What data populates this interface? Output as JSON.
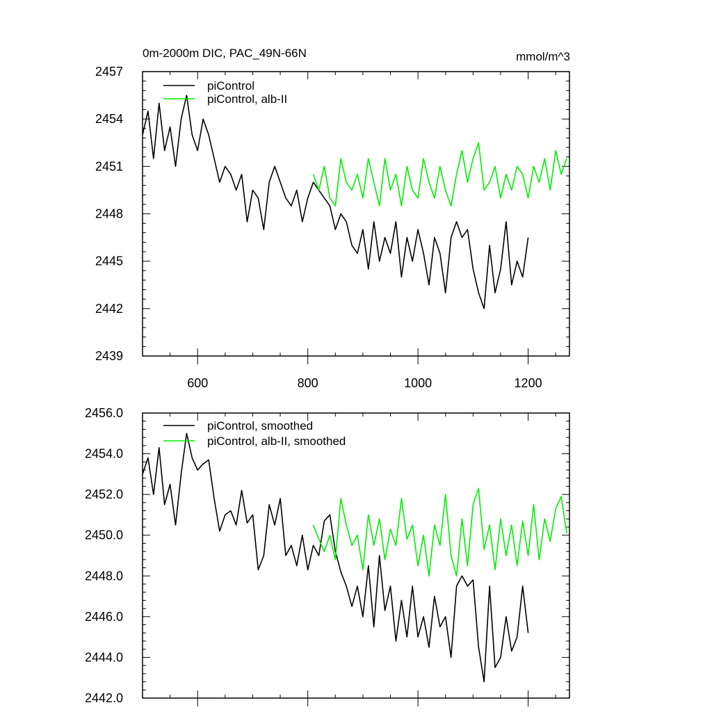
{
  "chart_data": [
    {
      "type": "line",
      "title": "0m-2000m DIC, PAC_49N-66N",
      "units": "mmol/m^3",
      "xlim": [
        500,
        1275
      ],
      "ylim": [
        2439,
        2457
      ],
      "xticks": [
        600,
        800,
        1000,
        1200
      ],
      "xtick_labels": [
        "600",
        "800",
        "1000",
        "1200"
      ],
      "yticks": [
        2439,
        2442,
        2445,
        2448,
        2451,
        2454,
        2457
      ],
      "ytick_labels": [
        "2439",
        "2442",
        "2445",
        "2448",
        "2451",
        "2454",
        "2457"
      ],
      "legend_position": "top-left",
      "series": [
        {
          "name": "piControl",
          "color": "#000000",
          "points": [
            [
              500,
              2453.0
            ],
            [
              510,
              2454.5
            ],
            [
              520,
              2451.5
            ],
            [
              530,
              2455.0
            ],
            [
              540,
              2452.0
            ],
            [
              550,
              2453.5
            ],
            [
              560,
              2451.0
            ],
            [
              570,
              2454.0
            ],
            [
              580,
              2455.5
            ],
            [
              590,
              2453.0
            ],
            [
              600,
              2452.0
            ],
            [
              610,
              2454.0
            ],
            [
              620,
              2453.0
            ],
            [
              630,
              2451.5
            ],
            [
              640,
              2450.0
            ],
            [
              650,
              2451.0
            ],
            [
              660,
              2450.5
            ],
            [
              670,
              2449.5
            ],
            [
              680,
              2450.5
            ],
            [
              690,
              2447.5
            ],
            [
              700,
              2449.5
            ],
            [
              710,
              2449.0
            ],
            [
              720,
              2447.0
            ],
            [
              730,
              2450.0
            ],
            [
              740,
              2451.0
            ],
            [
              750,
              2450.0
            ],
            [
              760,
              2449.0
            ],
            [
              770,
              2448.5
            ],
            [
              780,
              2449.5
            ],
            [
              790,
              2447.5
            ],
            [
              800,
              2449.0
            ],
            [
              810,
              2450.0
            ],
            [
              820,
              2449.5
            ],
            [
              830,
              2449.0
            ],
            [
              840,
              2448.5
            ],
            [
              850,
              2447.0
            ],
            [
              860,
              2448.0
            ],
            [
              870,
              2447.5
            ],
            [
              880,
              2446.0
            ],
            [
              890,
              2445.5
            ],
            [
              900,
              2447.0
            ],
            [
              910,
              2444.5
            ],
            [
              920,
              2447.5
            ],
            [
              930,
              2445.0
            ],
            [
              940,
              2446.5
            ],
            [
              950,
              2445.5
            ],
            [
              960,
              2447.5
            ],
            [
              970,
              2444.0
            ],
            [
              980,
              2446.5
            ],
            [
              990,
              2445.0
            ],
            [
              1000,
              2447.0
            ],
            [
              1010,
              2445.5
            ],
            [
              1020,
              2443.5
            ],
            [
              1030,
              2446.5
            ],
            [
              1040,
              2445.5
            ],
            [
              1050,
              2443.0
            ],
            [
              1060,
              2446.5
            ],
            [
              1070,
              2447.5
            ],
            [
              1080,
              2446.5
            ],
            [
              1090,
              2447.0
            ],
            [
              1100,
              2444.5
            ],
            [
              1110,
              2443.0
            ],
            [
              1120,
              2442.0
            ],
            [
              1130,
              2446.0
            ],
            [
              1140,
              2443.0
            ],
            [
              1150,
              2444.5
            ],
            [
              1160,
              2447.5
            ],
            [
              1170,
              2443.5
            ],
            [
              1180,
              2445.0
            ],
            [
              1190,
              2444.0
            ],
            [
              1200,
              2446.5
            ]
          ]
        },
        {
          "name": "piControl, alb-II",
          "color": "#00ee00",
          "points": [
            [
              810,
              2450.5
            ],
            [
              820,
              2449.5
            ],
            [
              830,
              2451.0
            ],
            [
              840,
              2449.0
            ],
            [
              850,
              2448.5
            ],
            [
              860,
              2451.5
            ],
            [
              870,
              2450.0
            ],
            [
              880,
              2449.5
            ],
            [
              890,
              2450.5
            ],
            [
              900,
              2449.0
            ],
            [
              910,
              2451.5
            ],
            [
              920,
              2450.0
            ],
            [
              930,
              2448.5
            ],
            [
              940,
              2451.5
            ],
            [
              950,
              2449.5
            ],
            [
              960,
              2450.5
            ],
            [
              970,
              2448.5
            ],
            [
              980,
              2451.0
            ],
            [
              990,
              2449.5
            ],
            [
              1000,
              2449.0
            ],
            [
              1010,
              2451.5
            ],
            [
              1020,
              2450.0
            ],
            [
              1030,
              2449.0
            ],
            [
              1040,
              2451.0
            ],
            [
              1050,
              2449.5
            ],
            [
              1060,
              2448.5
            ],
            [
              1070,
              2450.5
            ],
            [
              1080,
              2452.0
            ],
            [
              1090,
              2450.0
            ],
            [
              1100,
              2451.5
            ],
            [
              1110,
              2452.5
            ],
            [
              1120,
              2449.5
            ],
            [
              1130,
              2450.0
            ],
            [
              1140,
              2451.0
            ],
            [
              1150,
              2449.0
            ],
            [
              1160,
              2450.5
            ],
            [
              1170,
              2449.5
            ],
            [
              1180,
              2451.0
            ],
            [
              1190,
              2450.5
            ],
            [
              1200,
              2449.0
            ],
            [
              1210,
              2451.0
            ],
            [
              1220,
              2450.0
            ],
            [
              1230,
              2451.5
            ],
            [
              1240,
              2449.5
            ],
            [
              1250,
              2452.0
            ],
            [
              1260,
              2450.5
            ],
            [
              1270,
              2451.5
            ]
          ]
        }
      ]
    },
    {
      "type": "line",
      "title": "",
      "xlim": [
        500,
        1275
      ],
      "ylim": [
        2442.0,
        2456.0
      ],
      "xticks": [
        600,
        800,
        1000,
        1200
      ],
      "yticks": [
        2442.0,
        2444.0,
        2446.0,
        2448.0,
        2450.0,
        2452.0,
        2454.0,
        2456.0
      ],
      "ytick_labels": [
        "2442.0",
        "2444.0",
        "2446.0",
        "2448.0",
        "2450.0",
        "2452.0",
        "2454.0",
        "2456.0"
      ],
      "legend_position": "top-left",
      "series": [
        {
          "name": "piControl, smoothed",
          "color": "#000000",
          "points": [
            [
              500,
              2453.0
            ],
            [
              510,
              2453.8
            ],
            [
              520,
              2452.0
            ],
            [
              530,
              2454.3
            ],
            [
              540,
              2451.5
            ],
            [
              550,
              2452.5
            ],
            [
              560,
              2450.5
            ],
            [
              570,
              2453.0
            ],
            [
              580,
              2455.0
            ],
            [
              590,
              2453.8
            ],
            [
              600,
              2453.2
            ],
            [
              610,
              2453.5
            ],
            [
              620,
              2453.7
            ],
            [
              630,
              2451.8
            ],
            [
              640,
              2450.2
            ],
            [
              650,
              2451.0
            ],
            [
              660,
              2451.2
            ],
            [
              670,
              2450.5
            ],
            [
              680,
              2452.2
            ],
            [
              690,
              2450.6
            ],
            [
              700,
              2451.0
            ],
            [
              710,
              2448.3
            ],
            [
              720,
              2449.0
            ],
            [
              730,
              2451.5
            ],
            [
              740,
              2450.5
            ],
            [
              750,
              2451.8
            ],
            [
              760,
              2449.0
            ],
            [
              770,
              2449.5
            ],
            [
              780,
              2448.5
            ],
            [
              790,
              2450.0
            ],
            [
              800,
              2448.3
            ],
            [
              810,
              2449.5
            ],
            [
              820,
              2449.0
            ],
            [
              830,
              2450.7
            ],
            [
              840,
              2451.0
            ],
            [
              850,
              2449.2
            ],
            [
              860,
              2448.2
            ],
            [
              870,
              2447.5
            ],
            [
              880,
              2446.5
            ],
            [
              890,
              2447.5
            ],
            [
              900,
              2446.0
            ],
            [
              910,
              2448.5
            ],
            [
              920,
              2445.5
            ],
            [
              930,
              2449.0
            ],
            [
              940,
              2446.3
            ],
            [
              950,
              2447.5
            ],
            [
              960,
              2444.8
            ],
            [
              970,
              2446.8
            ],
            [
              980,
              2445.0
            ],
            [
              990,
              2447.5
            ],
            [
              1000,
              2445.0
            ],
            [
              1010,
              2446.0
            ],
            [
              1020,
              2444.5
            ],
            [
              1030,
              2447.0
            ],
            [
              1040,
              2445.5
            ],
            [
              1050,
              2446.0
            ],
            [
              1060,
              2444.0
            ],
            [
              1070,
              2447.5
            ],
            [
              1080,
              2448.0
            ],
            [
              1090,
              2447.5
            ],
            [
              1100,
              2447.8
            ],
            [
              1110,
              2444.5
            ],
            [
              1120,
              2442.8
            ],
            [
              1130,
              2447.5
            ],
            [
              1140,
              2443.5
            ],
            [
              1150,
              2444.0
            ],
            [
              1160,
              2446.0
            ],
            [
              1170,
              2444.3
            ],
            [
              1180,
              2445.0
            ],
            [
              1190,
              2447.5
            ],
            [
              1200,
              2445.2
            ]
          ]
        },
        {
          "name": "piControl, alb-II, smoothed",
          "color": "#00ee00",
          "points": [
            [
              810,
              2450.5
            ],
            [
              820,
              2449.8
            ],
            [
              830,
              2449.2
            ],
            [
              840,
              2450.0
            ],
            [
              850,
              2448.8
            ],
            [
              860,
              2451.8
            ],
            [
              870,
              2450.5
            ],
            [
              880,
              2449.5
            ],
            [
              890,
              2450.0
            ],
            [
              900,
              2448.3
            ],
            [
              910,
              2451.0
            ],
            [
              920,
              2449.5
            ],
            [
              930,
              2450.8
            ],
            [
              940,
              2448.8
            ],
            [
              950,
              2450.3
            ],
            [
              960,
              2449.5
            ],
            [
              970,
              2451.8
            ],
            [
              980,
              2449.8
            ],
            [
              990,
              2450.5
            ],
            [
              1000,
              2448.5
            ],
            [
              1010,
              2450.0
            ],
            [
              1020,
              2448.0
            ],
            [
              1030,
              2450.5
            ],
            [
              1040,
              2449.5
            ],
            [
              1050,
              2452.0
            ],
            [
              1060,
              2449.0
            ],
            [
              1070,
              2448.0
            ],
            [
              1080,
              2450.8
            ],
            [
              1090,
              2448.5
            ],
            [
              1100,
              2451.5
            ],
            [
              1110,
              2452.3
            ],
            [
              1120,
              2449.3
            ],
            [
              1130,
              2450.5
            ],
            [
              1140,
              2448.3
            ],
            [
              1150,
              2450.8
            ],
            [
              1160,
              2449.0
            ],
            [
              1170,
              2450.5
            ],
            [
              1180,
              2448.5
            ],
            [
              1190,
              2450.7
            ],
            [
              1200,
              2449.0
            ],
            [
              1210,
              2451.5
            ],
            [
              1220,
              2448.8
            ],
            [
              1230,
              2450.8
            ],
            [
              1240,
              2449.7
            ],
            [
              1250,
              2451.3
            ],
            [
              1260,
              2451.9
            ],
            [
              1270,
              2450.1
            ]
          ]
        }
      ]
    }
  ]
}
